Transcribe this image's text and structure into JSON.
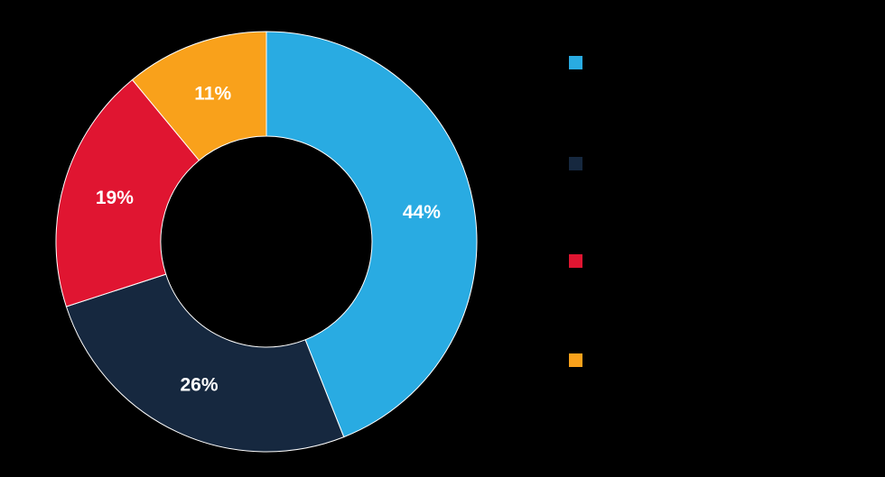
{
  "background_color": "#000000",
  "chart_data": {
    "type": "pie",
    "subtype": "donut",
    "values": [
      44,
      26,
      19,
      11
    ],
    "data_labels": [
      "44%",
      "26%",
      "19%",
      "11%"
    ],
    "colors": [
      "#29ABE2",
      "#16283F",
      "#E01531",
      "#F9A11B"
    ],
    "data_label_color": "#FFFFFF",
    "start_angle_deg": 0,
    "direction": "clockwise",
    "legend_position": "right",
    "legend_swatch_colors": [
      "#29ABE2",
      "#16283F",
      "#E01531",
      "#F9A11B"
    ],
    "legend_labels_visible": false,
    "title": ""
  }
}
